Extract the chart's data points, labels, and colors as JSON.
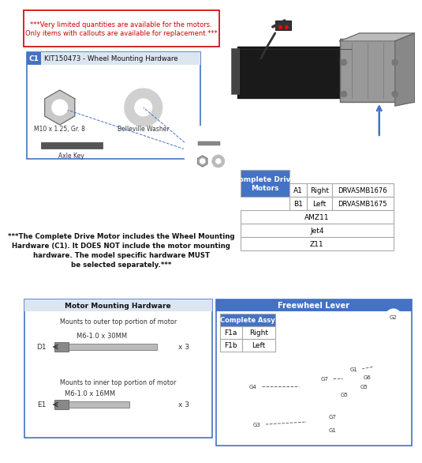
{
  "bg_color": "#ffffff",
  "warning_text": "***Very limited quantities are available for the motors.\nOnly items with callouts are available for replacement.***",
  "warning_color": "#cc0000",
  "blue_header_color": "#4472c4",
  "light_blue_color": "#dce6f1",
  "c1_label": "C1",
  "c1_title": "KIT150473 - Wheel Mounting Hardware",
  "c1_items": [
    "M10 x 1.25, Gr. 8",
    "Belleville Washer",
    "Axle Key"
  ],
  "table_title": "Complete Drive\nMotors",
  "table_rows": [
    [
      "A1",
      "Right",
      "DRVASMB1676"
    ],
    [
      "B1",
      "Left",
      "DRVASMB1675"
    ],
    [
      "AMZ11"
    ],
    [
      "Jet4"
    ],
    [
      "Z11"
    ]
  ],
  "motor_text_line1": "***The Complete Drive Motor includes the Wheel Mounting",
  "motor_text_line2": "Hardware (C1). It DOES NOT include the motor mounting",
  "motor_text_line3": "hardware. The model specific hardware MUST",
  "motor_text_line4": "be selected separately.***",
  "motor_mount_title": "Motor Mounting Hardware",
  "motor_d1_label": "D1",
  "motor_d1_text": "Mounts to outer top portion of motor",
  "motor_d1_spec": "M6-1.0 x 30MM",
  "motor_d1_qty": "x 3",
  "motor_e1_label": "E1",
  "motor_e1_text": "Mounts to inner top portion of motor",
  "motor_e1_spec": "M6-1.0 x 16MM",
  "motor_e1_qty": "x 3",
  "freewheel_title": "Freewheel Lever",
  "freewheel_table_title": "Complete Assy",
  "freewheel_rows": [
    [
      "F1a",
      "Right"
    ],
    [
      "F1b",
      "Left"
    ]
  ],
  "gray_box_border": "#aaaaaa",
  "table_border": "#aaaaaa"
}
